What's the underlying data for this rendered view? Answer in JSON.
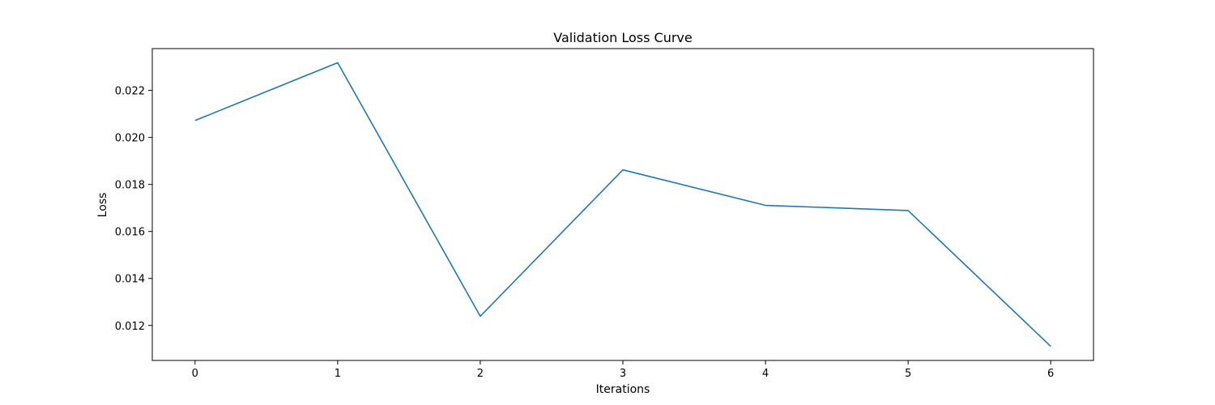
{
  "chart_data": {
    "type": "line",
    "title": "Validation Loss Curve",
    "xlabel": "Iterations",
    "ylabel": "Loss",
    "x": [
      0,
      1,
      2,
      3,
      4,
      5,
      6
    ],
    "series": [
      {
        "values": [
          0.02072,
          0.02318,
          0.01239,
          0.01862,
          0.01711,
          0.01689,
          0.01111
        ],
        "color": "#1f77b4"
      }
    ],
    "xticks": [
      "0",
      "1",
      "2",
      "3",
      "4",
      "5",
      "6"
    ],
    "yticks": [
      "0.012",
      "0.014",
      "0.016",
      "0.018",
      "0.020",
      "0.022"
    ],
    "ytick_values": [
      0.012,
      0.014,
      0.016,
      0.018,
      0.02,
      0.022
    ],
    "xlim": [
      -0.3,
      6.3
    ],
    "ylim": [
      0.01051,
      0.02378
    ],
    "grid": false,
    "legend": "none"
  }
}
